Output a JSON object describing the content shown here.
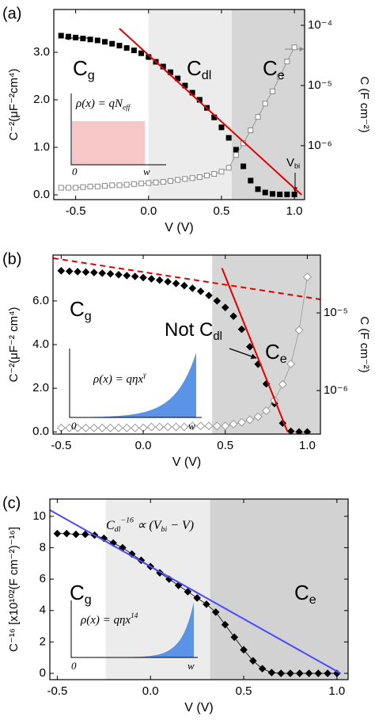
{
  "chart_data": [
    {
      "type": "scatter",
      "label": "(a)",
      "xlabel": "V (V)",
      "ylabel": "C⁻²(μF⁻²cm⁴)",
      "y2label": "C (F cm⁻²)",
      "xlim": [
        -0.65,
        1.07
      ],
      "xticks": [
        -0.5,
        {
          "value": 0,
          "label": "0.0"
        },
        0.5,
        {
          "value": 1,
          "label": "1.0"
        }
      ],
      "ylim": [
        -0.1,
        3.9
      ],
      "yticks": [
        {
          "value": 0,
          "label": "0.0"
        },
        {
          "value": 1,
          "label": "1.0"
        },
        {
          "value": 2,
          "label": "2.0"
        },
        {
          "value": 3,
          "label": "3.0"
        }
      ],
      "y2log": true,
      "y2lim": [
        1.27e-07,
        0.000183
      ],
      "y2ticks": [
        {
          "value": 1e-06,
          "label": "10⁻⁶"
        },
        {
          "value": 1e-05,
          "label": "10⁻⁵"
        },
        {
          "value": 0.0001,
          "label": "10⁻⁴"
        }
      ],
      "regions": [
        {
          "xlim": [
            0,
            0.57
          ],
          "color": "#ececec"
        },
        {
          "xlim": [
            0.57,
            1.07
          ],
          "color": "#d6d6d6"
        }
      ],
      "series": [
        {
          "marker": "square",
          "filled": true,
          "color": "#000000",
          "connect": false,
          "x": [
            -0.6,
            -0.55,
            -0.5,
            -0.45,
            -0.4,
            -0.35,
            -0.3,
            -0.25,
            -0.2,
            -0.15,
            -0.1,
            -0.05,
            0,
            0.05,
            0.1,
            0.15,
            0.2,
            0.25,
            0.3,
            0.35,
            0.4,
            0.45,
            0.5,
            0.55,
            0.6,
            0.65,
            0.7,
            0.75,
            0.8,
            0.85,
            0.9,
            0.95,
            1.0
          ],
          "values": [
            3.35,
            3.33,
            3.31,
            3.29,
            3.27,
            3.25,
            3.22,
            3.18,
            3.14,
            3.09,
            3.04,
            2.98,
            2.9,
            2.8,
            2.7,
            2.58,
            2.45,
            2.3,
            2.15,
            2.0,
            1.83,
            1.63,
            1.42,
            1.2,
            0.95,
            0.6,
            0.3,
            0.12,
            0.05,
            0.02,
            0.01,
            0.01,
            0.01
          ]
        },
        {
          "marker": "square",
          "filled": false,
          "color": "#888888",
          "connect": true,
          "axis": "y2",
          "x": [
            -0.6,
            -0.55,
            -0.5,
            -0.45,
            -0.4,
            -0.35,
            -0.3,
            -0.25,
            -0.2,
            -0.15,
            -0.1,
            -0.05,
            0,
            0.05,
            0.1,
            0.15,
            0.2,
            0.25,
            0.3,
            0.35,
            0.4,
            0.45,
            0.5,
            0.55,
            0.6,
            0.65,
            0.7,
            0.75,
            0.8,
            0.85,
            0.9,
            0.95,
            1.0
          ],
          "values": [
            2e-07,
            2e-07,
            2e-07,
            2.05e-07,
            2.1e-07,
            2.1e-07,
            2.15e-07,
            2.2e-07,
            2.2e-07,
            2.25e-07,
            2.3e-07,
            2.35e-07,
            2.4e-07,
            2.45e-07,
            2.5e-07,
            2.6e-07,
            2.7e-07,
            2.8e-07,
            2.9e-07,
            3e-07,
            3.2e-07,
            3.4e-07,
            3.7e-07,
            4.3e-07,
            7e-07,
            1.1e-06,
            1.8e-06,
            3e-06,
            5e-06,
            8e-06,
            1.4e-05,
            2.5e-05,
            4.3e-05
          ]
        },
        {
          "marker": "none",
          "color": "#e00000",
          "style": "solid",
          "x": [
            -0.2,
            1.05
          ],
          "values": [
            3.5,
            0
          ]
        }
      ],
      "annotations": [
        {
          "parts": [
            {
              "text": "C"
            },
            {
              "text": "g",
              "shift": "sub"
            }
          ]
        },
        {
          "parts": [
            {
              "text": "C"
            },
            {
              "text": "dl",
              "shift": "sub"
            }
          ]
        },
        {
          "parts": [
            {
              "text": "C"
            },
            {
              "text": "e",
              "shift": "sub"
            }
          ]
        },
        {
          "parts": [
            {
              "text": "V"
            },
            {
              "text": "bi",
              "shift": "sub"
            }
          ]
        },
        {
          "parts": [
            {
              "text": "ρ(x) = qN"
            },
            {
              "text": "eff",
              "shift": "sub"
            }
          ]
        },
        {
          "parts": [
            {
              "text": "0"
            }
          ]
        },
        {
          "parts": [
            {
              "text": "w"
            }
          ]
        }
      ]
    },
    {
      "type": "scatter",
      "label": "(b)",
      "xlabel": "V (V)",
      "ylabel": "C⁻²(μF⁻² cm⁴)",
      "y2label": "C (F cm⁻²)",
      "xlim": [
        -0.55,
        1.08
      ],
      "xticks": [
        -0.5,
        {
          "value": 0,
          "label": "0.0"
        },
        0.5,
        {
          "value": 1,
          "label": "1.0"
        }
      ],
      "ylim": [
        -0.1,
        8.1
      ],
      "yticks": [
        {
          "value": 0,
          "label": "0.0"
        },
        {
          "value": 2,
          "label": "2.0"
        },
        {
          "value": 4,
          "label": "4.0"
        },
        {
          "value": 6,
          "label": "6.0"
        }
      ],
      "y2log": true,
      "y2lim": [
        2.75e-07,
        5.56e-05
      ],
      "y2ticks": [
        {
          "value": 1e-06,
          "label": "10⁻⁶"
        },
        {
          "value": 1e-05,
          "label": "10⁻⁵"
        }
      ],
      "regions": [
        {
          "xlim": [
            0.42,
            1.08
          ],
          "color": "#d6d6d6"
        }
      ],
      "series": [
        {
          "marker": "diamond",
          "filled": true,
          "color": "#000000",
          "connect": false,
          "x": [
            -0.5,
            -0.45,
            -0.4,
            -0.35,
            -0.3,
            -0.25,
            -0.2,
            -0.15,
            -0.1,
            -0.05,
            0,
            0.05,
            0.1,
            0.15,
            0.2,
            0.25,
            0.3,
            0.35,
            0.4,
            0.45,
            0.5,
            0.55,
            0.6,
            0.65,
            0.7,
            0.75,
            0.8,
            0.85,
            0.9,
            0.95,
            1.0
          ],
          "values": [
            7.38,
            7.36,
            7.34,
            7.32,
            7.3,
            7.27,
            7.24,
            7.2,
            7.16,
            7.12,
            7.07,
            7.01,
            6.95,
            6.88,
            6.8,
            6.7,
            6.58,
            6.44,
            6.25,
            6.0,
            5.7,
            5.3,
            4.7,
            3.9,
            3.1,
            2.2,
            1.3,
            0.4,
            0.03,
            0,
            0
          ]
        },
        {
          "marker": "diamond",
          "filled": false,
          "color": "#999999",
          "connect": true,
          "axis": "y2",
          "x": [
            -0.5,
            -0.45,
            -0.4,
            -0.35,
            -0.3,
            -0.25,
            -0.2,
            -0.15,
            -0.1,
            -0.05,
            0,
            0.05,
            0.1,
            0.15,
            0.2,
            0.25,
            0.3,
            0.35,
            0.4,
            0.45,
            0.5,
            0.55,
            0.6,
            0.65,
            0.7,
            0.75,
            0.8,
            0.85,
            0.9,
            0.95,
            1.0
          ],
          "values": [
            3.3e-07,
            3.3e-07,
            3.3e-07,
            3.3e-07,
            3.3e-07,
            3.3e-07,
            3.3e-07,
            3.3e-07,
            3.3e-07,
            3.3e-07,
            3.3e-07,
            3.4e-07,
            3.4e-07,
            3.4e-07,
            3.4e-07,
            3.4e-07,
            3.5e-07,
            3.5e-07,
            3.5e-07,
            3.5e-07,
            3.5e-07,
            3.7e-07,
            3.9e-07,
            4.2e-07,
            4.6e-07,
            5.5e-07,
            7.5e-07,
            1.2e-06,
            2.2e-06,
            6e-06,
            2.9e-05
          ]
        },
        {
          "marker": "none",
          "color": "#e00000",
          "style": "solid",
          "x": [
            0.48,
            0.88
          ],
          "values": [
            7.5,
            0
          ]
        },
        {
          "marker": "none",
          "color": "#e00000",
          "style": "dashed",
          "x": [
            -0.55,
            1.08
          ],
          "values": [
            7.96,
            6.07
          ]
        }
      ],
      "annotations": [
        {
          "parts": [
            {
              "text": "C"
            },
            {
              "text": "g",
              "shift": "sub"
            }
          ]
        },
        {
          "parts": [
            {
              "text": "C"
            },
            {
              "text": "e",
              "shift": "sub"
            }
          ]
        },
        {
          "parts": [
            {
              "text": "Not C"
            },
            {
              "text": "dl",
              "shift": "sub"
            }
          ]
        },
        {
          "parts": [
            {
              "text": "ρ(x) = qηx"
            },
            {
              "text": "γ",
              "shift": "super"
            }
          ]
        },
        {
          "parts": [
            {
              "text": "0"
            }
          ]
        },
        {
          "parts": [
            {
              "text": "w"
            }
          ]
        }
      ]
    },
    {
      "type": "scatter",
      "label": "(c)",
      "xlabel": "V (V)",
      "ylabel": "C⁻¹⁶ [x10¹⁰²(F cm⁻²)⁻¹⁶]",
      "xlim": [
        -0.54,
        1.06
      ],
      "xticks": [
        -0.5,
        {
          "value": 0,
          "label": "0.0"
        },
        0.5,
        {
          "value": 1,
          "label": "1.0"
        }
      ],
      "ylim": [
        -0.4,
        11.1
      ],
      "yticks": [
        0,
        2,
        4,
        6,
        8,
        10
      ],
      "regions": [
        {
          "xlim": [
            -0.24,
            0.32
          ],
          "color": "#ececec"
        },
        {
          "xlim": [
            0.32,
            1.06
          ],
          "color": "#d2d2d2"
        }
      ],
      "series": [
        {
          "marker": "diamond",
          "filled": true,
          "color": "#000000",
          "connect": true,
          "x": [
            -0.5,
            -0.45,
            -0.4,
            -0.35,
            -0.3,
            -0.25,
            -0.2,
            -0.15,
            -0.1,
            -0.05,
            0,
            0.05,
            0.1,
            0.15,
            0.2,
            0.25,
            0.3,
            0.35,
            0.4,
            0.45,
            0.5,
            0.55,
            0.6,
            0.65,
            0.7,
            0.75,
            0.8,
            0.85,
            0.9,
            0.95,
            1.0
          ],
          "values": [
            8.9,
            8.9,
            8.85,
            8.85,
            8.8,
            8.6,
            8.3,
            8.0,
            7.6,
            7.2,
            6.8,
            6.4,
            6.0,
            5.6,
            5.2,
            4.8,
            4.4,
            3.9,
            3.1,
            2.3,
            1.5,
            0.8,
            0.3,
            0.05,
            0,
            0,
            0,
            0,
            0,
            0,
            0
          ]
        },
        {
          "marker": "none",
          "color": "#4a4aff",
          "style": "solid",
          "x": [
            -0.54,
            1.02
          ],
          "values": [
            10.4,
            0
          ]
        }
      ],
      "annotations": [
        {
          "parts": [
            {
              "text": "C"
            },
            {
              "text": "g",
              "shift": "sub"
            }
          ]
        },
        {
          "parts": [
            {
              "text": "C"
            },
            {
              "text": "e",
              "shift": "sub"
            }
          ]
        },
        {
          "parts": [
            {
              "text": "C"
            },
            {
              "text": "dl",
              "shift": "sub"
            },
            {
              "text": "−16",
              "shift": "super"
            },
            {
              "text": " ∝ (V"
            },
            {
              "text": "bi",
              "shift": "sub"
            },
            {
              "text": " − V)"
            }
          ]
        },
        {
          "parts": [
            {
              "text": "ρ(x) = qηx"
            },
            {
              "text": "14",
              "shift": "super"
            }
          ]
        },
        {
          "parts": [
            {
              "text": "0"
            }
          ]
        },
        {
          "parts": [
            {
              "text": "w"
            }
          ]
        }
      ]
    }
  ]
}
